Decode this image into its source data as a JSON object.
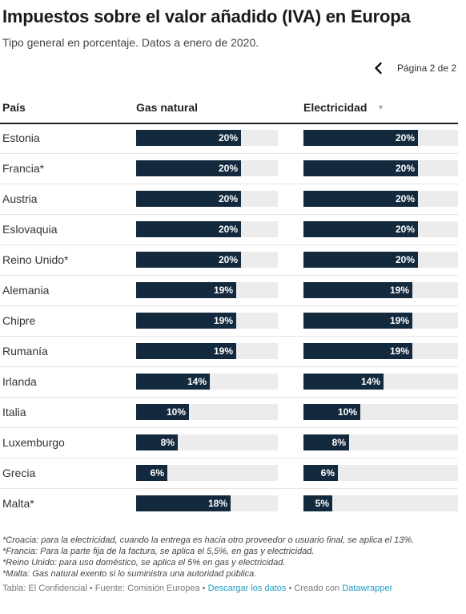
{
  "title": "Impuestos sobre el valor añadido (IVA) en Europa",
  "subtitle": "Tipo general en porcentaje. Datos a enero de 2020.",
  "pager": {
    "label": "Página 2 de 2",
    "icon": "chevron-left-icon"
  },
  "columns": {
    "country": "País",
    "gas": "Gas natural",
    "electricity": "Electricidad",
    "sort_icon": "sort-descending-icon"
  },
  "colors": {
    "bar": "#13293d",
    "track": "#ececec",
    "link": "#1d9bc7"
  },
  "chart_data": {
    "type": "bar",
    "orientation": "horizontal",
    "value_max": 27,
    "categories": [
      "Estonia",
      "Francia*",
      "Austria",
      "Eslovaquia",
      "Reino Unido*",
      "Alemania",
      "Chipre",
      "Rumanía",
      "Irlanda",
      "Italia",
      "Luxemburgo",
      "Grecia",
      "Malta*"
    ],
    "series": [
      {
        "name": "Gas natural",
        "values": [
          20,
          20,
          20,
          20,
          20,
          19,
          19,
          19,
          14,
          10,
          8,
          6,
          18
        ],
        "labels": [
          "20%",
          "20%",
          "20%",
          "20%",
          "20%",
          "19%",
          "19%",
          "19%",
          "14%",
          "10%",
          "8%",
          "6%",
          "18%"
        ]
      },
      {
        "name": "Electricidad",
        "values": [
          20,
          20,
          20,
          20,
          20,
          19,
          19,
          19,
          14,
          10,
          8,
          6,
          5
        ],
        "labels": [
          "20%",
          "20%",
          "20%",
          "20%",
          "20%",
          "19%",
          "19%",
          "19%",
          "14%",
          "10%",
          "8%",
          "6%",
          "5%"
        ]
      }
    ]
  },
  "notes": [
    "*Croacia: para la electricidad, cuando la entrega es hacia otro proveedor o usuario final, se aplica el 13%.",
    "*Francia: Para la parte fija de la factura, se aplica el 5,5%, en gas y electricidad.",
    "*Reino Unido: para uso doméstico, se aplica el 5% en gas y electricidad.",
    "*Malta: Gas natural exento si lo suministra una autoridad pública."
  ],
  "footer": {
    "source": "Tabla: El Confidencial • Fuente: Comisión Europea • ",
    "download": "Descargar los datos",
    "created": " • Creado con ",
    "tool": "Datawrapper"
  }
}
